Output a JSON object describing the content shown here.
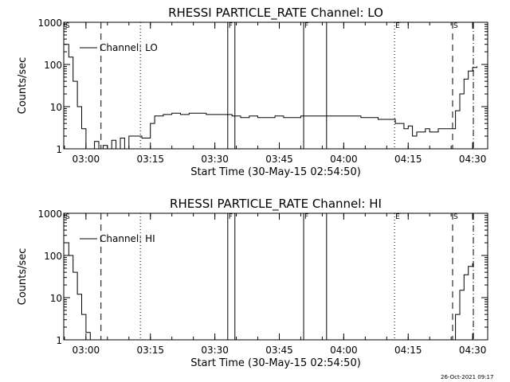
{
  "footer": {
    "timestamp": "26-Oct-2021 09:17"
  },
  "chart_data": [
    {
      "type": "line",
      "title": "RHESSI PARTICLE_RATE Channel: LO",
      "xlabel": "Start Time (30-May-15 02:54:50)",
      "ylabel": "Counts/sec",
      "y_scale": "log",
      "ylim": [
        1,
        1000
      ],
      "xlim": [
        "02:54:50",
        "04:33:30"
      ],
      "x_ticks": [
        "03:00",
        "03:15",
        "03:30",
        "03:45",
        "04:00",
        "04:15",
        "04:30"
      ],
      "y_ticks": [
        "1",
        "10",
        "100",
        "1000"
      ],
      "legend": "top-left",
      "series": [
        {
          "name": "Channel: LO",
          "x": [
            "02:55:00",
            "02:56:00",
            "02:57:00",
            "02:58:00",
            "02:59:00",
            "03:00:00",
            "03:01:00",
            "03:02:00",
            "03:03:00",
            "03:04:00",
            "03:05:00",
            "03:06:00",
            "03:07:00",
            "03:08:00",
            "03:09:00",
            "03:10:00",
            "03:11:00",
            "03:12:00",
            "03:13:00",
            "03:14:00",
            "03:15:00",
            "03:16:00",
            "03:18:00",
            "03:20:00",
            "03:22:00",
            "03:24:00",
            "03:26:00",
            "03:28:00",
            "03:30:00",
            "03:32:00",
            "03:33:00",
            "03:34:00",
            "03:36:00",
            "03:38:00",
            "03:40:00",
            "03:42:00",
            "03:44:00",
            "03:46:00",
            "03:48:00",
            "03:50:00",
            "03:52:00",
            "03:54:00",
            "03:56:00",
            "03:58:00",
            "04:00:00",
            "04:02:00",
            "04:04:00",
            "04:06:00",
            "04:08:00",
            "04:10:00",
            "04:12:00",
            "04:14:00",
            "04:15:00",
            "04:16:00",
            "04:17:00",
            "04:18:00",
            "04:19:00",
            "04:20:00",
            "04:22:00",
            "04:24:00",
            "04:25:00",
            "04:26:00",
            "04:27:00",
            "04:28:00",
            "04:29:00",
            "04:30:00",
            "04:31:00"
          ],
          "y": [
            300,
            150,
            40,
            10,
            3,
            1,
            1,
            1.5,
            1,
            1.2,
            1,
            1.6,
            1,
            1.8,
            1,
            2,
            2,
            2,
            1.8,
            1.8,
            4,
            6,
            6.5,
            7,
            6.5,
            7,
            7,
            6.5,
            6.5,
            6.5,
            6.5,
            6,
            5.5,
            6,
            5.5,
            5.5,
            6,
            5.5,
            5.5,
            6,
            6,
            6,
            6,
            6,
            6,
            6,
            5.5,
            5.5,
            5,
            5,
            4,
            3,
            3.5,
            2,
            2.5,
            2.5,
            3,
            2.5,
            3,
            3,
            3,
            8,
            20,
            45,
            70,
            85,
            90
          ]
        }
      ],
      "markers": [
        {
          "label": "S",
          "x": "02:55:00",
          "style": "none"
        },
        {
          "label": "",
          "x": "03:03:30",
          "style": "dashed"
        },
        {
          "label": "",
          "x": "03:12:40",
          "style": "dotted"
        },
        {
          "label": "F",
          "x": "03:33:00",
          "style": "solid"
        },
        {
          "label": "",
          "x": "03:34:40",
          "style": "solid"
        },
        {
          "label": "F",
          "x": "03:50:40",
          "style": "solid"
        },
        {
          "label": "",
          "x": "03:56:00",
          "style": "solid"
        },
        {
          "label": "E",
          "x": "04:11:50",
          "style": "dotted"
        },
        {
          "label": "S",
          "x": "04:25:20",
          "style": "dashed"
        },
        {
          "label": "",
          "x": "04:30:10",
          "style": "dashdot"
        }
      ]
    },
    {
      "type": "line",
      "title": "RHESSI PARTICLE_RATE Channel: HI",
      "xlabel": "Start Time (30-May-15 02:54:50)",
      "ylabel": "Counts/sec",
      "y_scale": "log",
      "ylim": [
        1,
        1000
      ],
      "xlim": [
        "02:54:50",
        "04:33:30"
      ],
      "x_ticks": [
        "03:00",
        "03:15",
        "03:30",
        "03:45",
        "04:00",
        "04:15",
        "04:30"
      ],
      "y_ticks": [
        "1",
        "10",
        "100",
        "1000"
      ],
      "legend": "top-left",
      "series": [
        {
          "name": "Channel: HI",
          "x": [
            "02:55:00",
            "02:56:00",
            "02:57:00",
            "02:58:00",
            "02:59:00",
            "03:00:00",
            "03:01:00",
            "04:25:00",
            "04:26:00",
            "04:27:00",
            "04:28:00",
            "04:29:00",
            "04:30:00"
          ],
          "y": [
            200,
            100,
            40,
            12,
            4,
            1.5,
            1,
            1,
            4,
            15,
            35,
            55,
            65
          ]
        }
      ],
      "markers": [
        {
          "label": "S",
          "x": "02:55:00",
          "style": "none"
        },
        {
          "label": "",
          "x": "03:03:30",
          "style": "dashed"
        },
        {
          "label": "",
          "x": "03:12:40",
          "style": "dotted"
        },
        {
          "label": "F",
          "x": "03:33:00",
          "style": "solid"
        },
        {
          "label": "",
          "x": "03:34:40",
          "style": "solid"
        },
        {
          "label": "F",
          "x": "03:50:40",
          "style": "solid"
        },
        {
          "label": "",
          "x": "03:56:00",
          "style": "solid"
        },
        {
          "label": "E",
          "x": "04:11:50",
          "style": "dotted"
        },
        {
          "label": "S",
          "x": "04:25:20",
          "style": "dashed"
        },
        {
          "label": "",
          "x": "04:30:10",
          "style": "dashdot"
        }
      ]
    }
  ]
}
